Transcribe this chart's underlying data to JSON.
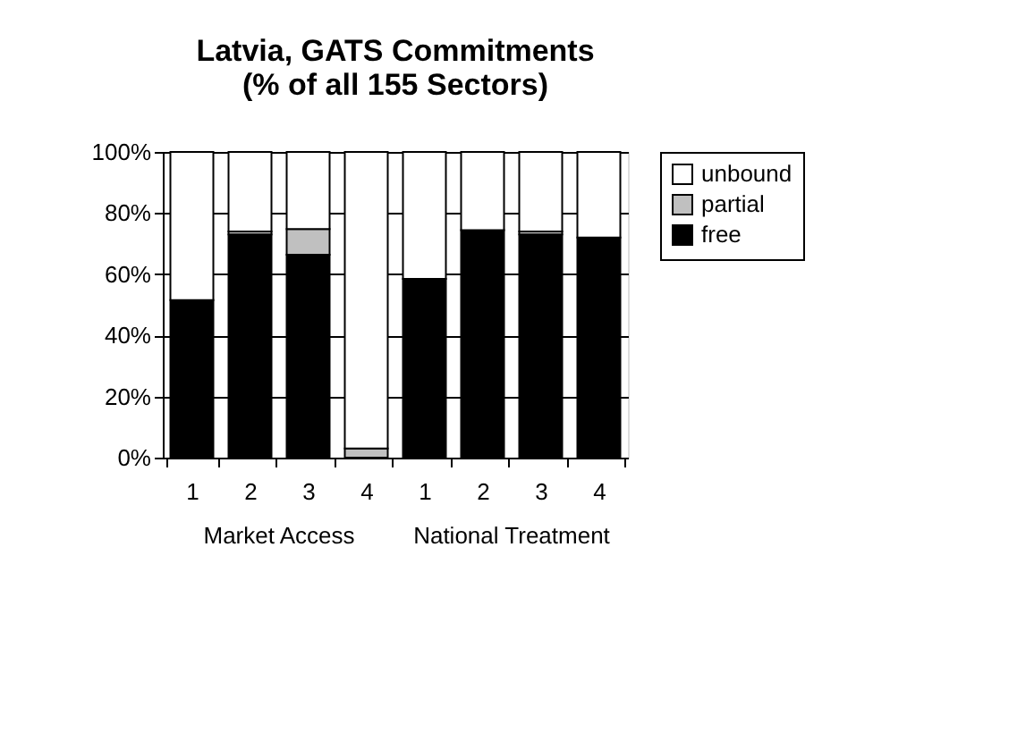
{
  "chart_data": {
    "type": "bar",
    "stacked": true,
    "title": "Latvia, GATS Commitments\n(% of all 155 Sectors)",
    "categories": [
      "1",
      "2",
      "3",
      "4",
      "1",
      "2",
      "3",
      "4"
    ],
    "series": [
      {
        "name": "free",
        "color": "#000000",
        "values": [
          51.5,
          73,
          66.4,
          0,
          58.5,
          74.4,
          73,
          72
        ]
      },
      {
        "name": "partial",
        "color": "#c0c0c0",
        "values": [
          0,
          1,
          8.4,
          3,
          0,
          0,
          1,
          0
        ]
      },
      {
        "name": "unbound",
        "color": "#ffffff",
        "values": [
          48.5,
          26,
          25.2,
          97,
          41.5,
          25.6,
          26,
          28
        ]
      }
    ],
    "ylim": [
      0,
      100
    ],
    "yticks": [
      {
        "value": 0,
        "label": "0%"
      },
      {
        "value": 20,
        "label": "20%"
      },
      {
        "value": 40,
        "label": "40%"
      },
      {
        "value": 60,
        "label": "60%"
      },
      {
        "value": 80,
        "label": "80%"
      },
      {
        "value": 100,
        "label": "100%"
      }
    ],
    "grid": "y",
    "legend": "right",
    "annotations": [
      "Market Access",
      "National Treatment"
    ]
  }
}
